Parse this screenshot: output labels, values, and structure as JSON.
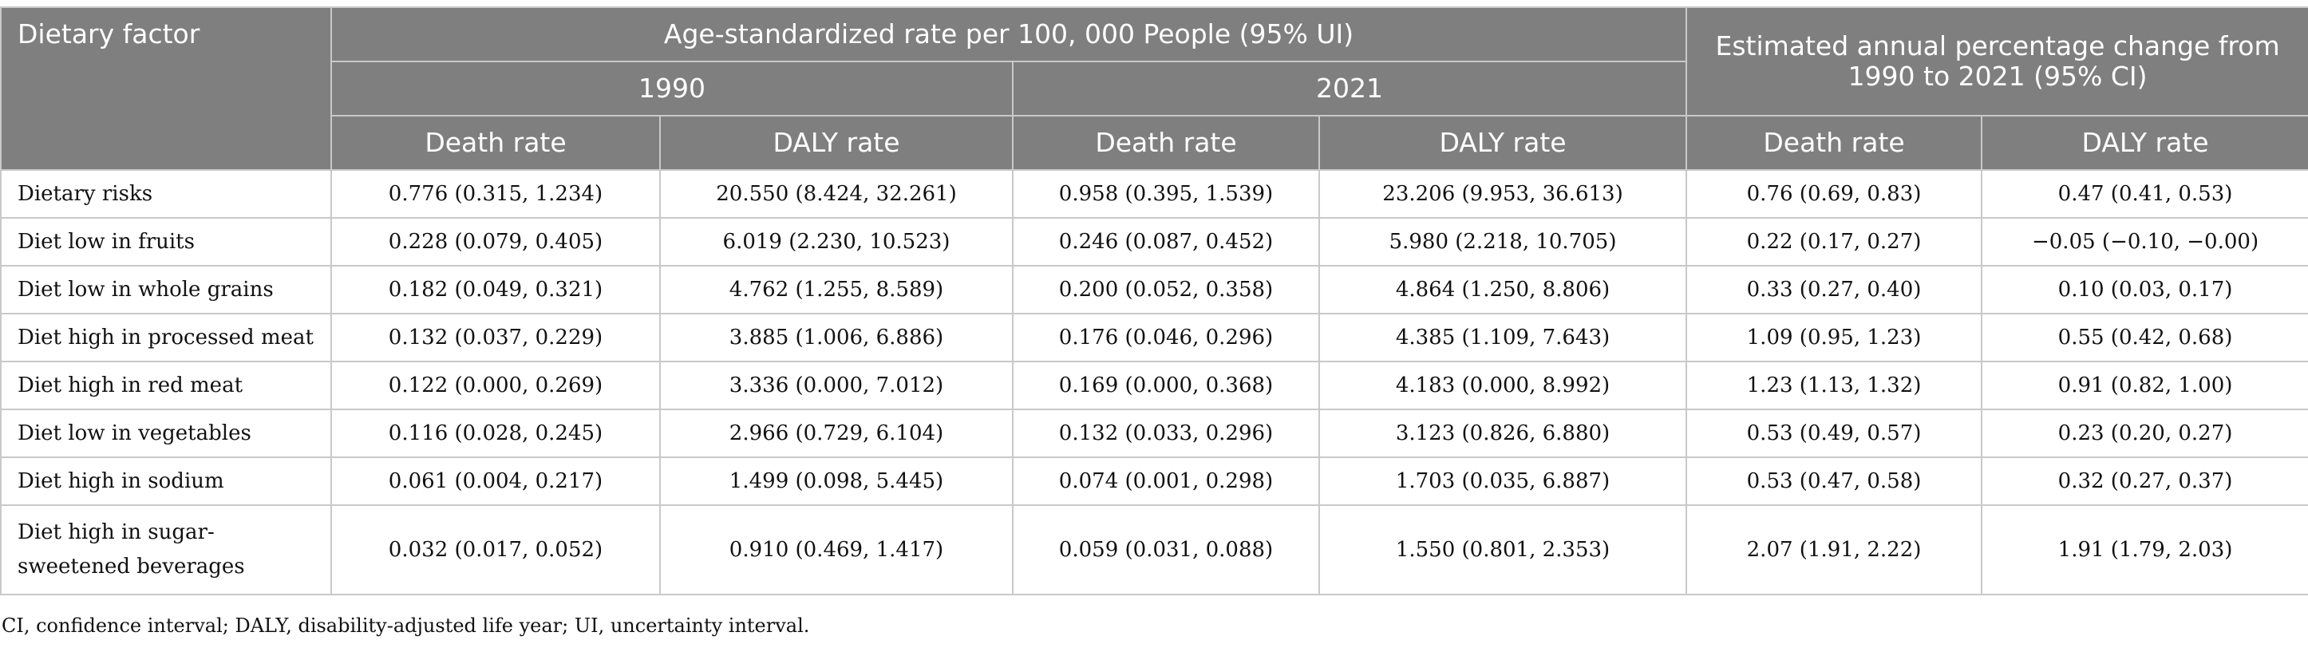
{
  "table": {
    "header": {
      "factor": "Dietary factor",
      "group_rate": "Age-standardized rate per 100, 000 People (95% UI)",
      "group_change": "Estimated annual percentage change from 1990 to 2021 (95% CI)",
      "year_1990": "1990",
      "year_2021": "2021",
      "death_rate": "Death rate",
      "daly_rate": "DALY rate"
    },
    "rows": [
      {
        "factor": "Dietary risks",
        "death_1990": "0.776 (0.315, 1.234)",
        "daly_1990": "20.550 (8.424, 32.261)",
        "death_2021": "0.958 (0.395, 1.539)",
        "daly_2021": "23.206 (9.953, 36.613)",
        "eapc_death": "0.76 (0.69, 0.83)",
        "eapc_daly": "0.47 (0.41, 0.53)"
      },
      {
        "factor": "Diet low in fruits",
        "death_1990": "0.228 (0.079, 0.405)",
        "daly_1990": "6.019 (2.230, 10.523)",
        "death_2021": "0.246 (0.087, 0.452)",
        "daly_2021": "5.980 (2.218, 10.705)",
        "eapc_death": "0.22 (0.17, 0.27)",
        "eapc_daly": "−0.05 (−0.10, −0.00)"
      },
      {
        "factor": "Diet low in whole grains",
        "death_1990": "0.182 (0.049, 0.321)",
        "daly_1990": "4.762 (1.255, 8.589)",
        "death_2021": "0.200 (0.052, 0.358)",
        "daly_2021": "4.864 (1.250, 8.806)",
        "eapc_death": "0.33 (0.27, 0.40)",
        "eapc_daly": "0.10 (0.03, 0.17)"
      },
      {
        "factor": "Diet high in processed meat",
        "death_1990": "0.132 (0.037, 0.229)",
        "daly_1990": "3.885 (1.006, 6.886)",
        "death_2021": "0.176 (0.046, 0.296)",
        "daly_2021": "4.385 (1.109, 7.643)",
        "eapc_death": "1.09 (0.95, 1.23)",
        "eapc_daly": "0.55 (0.42, 0.68)"
      },
      {
        "factor": "Diet high in red meat",
        "death_1990": "0.122 (0.000, 0.269)",
        "daly_1990": "3.336 (0.000, 7.012)",
        "death_2021": "0.169 (0.000, 0.368)",
        "daly_2021": "4.183 (0.000, 8.992)",
        "eapc_death": "1.23 (1.13, 1.32)",
        "eapc_daly": "0.91 (0.82, 1.00)"
      },
      {
        "factor": "Diet low in vegetables",
        "death_1990": "0.116 (0.028, 0.245)",
        "daly_1990": "2.966 (0.729, 6.104)",
        "death_2021": "0.132 (0.033, 0.296)",
        "daly_2021": "3.123 (0.826, 6.880)",
        "eapc_death": "0.53 (0.49, 0.57)",
        "eapc_daly": "0.23 (0.20, 0.27)"
      },
      {
        "factor": "Diet high in sodium",
        "death_1990": "0.061 (0.004, 0.217)",
        "daly_1990": "1.499 (0.098, 5.445)",
        "death_2021": "0.074 (0.001, 0.298)",
        "daly_2021": "1.703 (0.035, 6.887)",
        "eapc_death": "0.53 (0.47, 0.58)",
        "eapc_daly": "0.32 (0.27, 0.37)"
      },
      {
        "factor": "Diet high in sugar-sweetened beverages",
        "death_1990": "0.032 (0.017, 0.052)",
        "daly_1990": "0.910 (0.469, 1.417)",
        "death_2021": "0.059 (0.031, 0.088)",
        "daly_2021": "1.550 (0.801, 2.353)",
        "eapc_death": "2.07 (1.91, 2.22)",
        "eapc_daly": "1.91 (1.79, 2.03)"
      }
    ]
  },
  "footnote": "CI, confidence interval; DALY, disability-adjusted life year; UI, uncertainty interval."
}
